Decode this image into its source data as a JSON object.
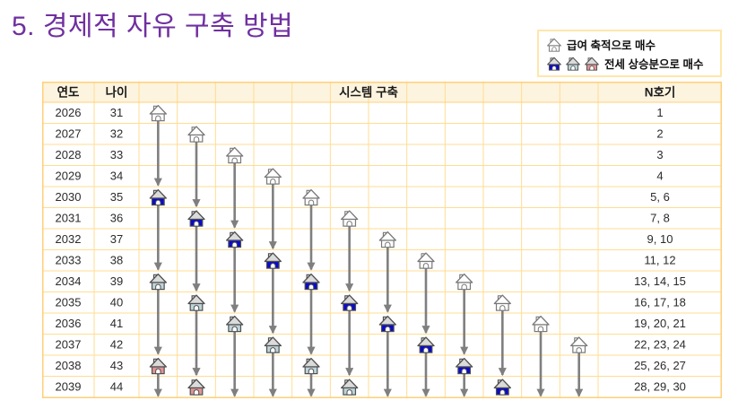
{
  "title": "5. 경제적 자유 구축 방법",
  "legend": {
    "salary": {
      "label": "급여 축적으로 매수",
      "icons": [
        "gray"
      ]
    },
    "jeonse": {
      "label": "전세 상승분으로 매수",
      "icons": [
        "blue",
        "teal",
        "red"
      ]
    }
  },
  "table": {
    "header": {
      "year": "연도",
      "age": "나이",
      "system": "시스템 구축",
      "unit": "N호기"
    },
    "system_column_count": 12,
    "rows": [
      {
        "year": "2026",
        "age": "31",
        "units": "1"
      },
      {
        "year": "2027",
        "age": "32",
        "units": "2"
      },
      {
        "year": "2028",
        "age": "33",
        "units": "3"
      },
      {
        "year": "2029",
        "age": "34",
        "units": "4"
      },
      {
        "year": "2030",
        "age": "35",
        "units": "5, 6"
      },
      {
        "year": "2031",
        "age": "36",
        "units": "7, 8"
      },
      {
        "year": "2032",
        "age": "37",
        "units": "9, 10"
      },
      {
        "year": "2033",
        "age": "38",
        "units": "11, 12"
      },
      {
        "year": "2034",
        "age": "39",
        "units": "13, 14, 15"
      },
      {
        "year": "2035",
        "age": "40",
        "units": "16, 17, 18"
      },
      {
        "year": "2036",
        "age": "41",
        "units": "19, 20, 21"
      },
      {
        "year": "2037",
        "age": "42",
        "units": "22, 23, 24"
      },
      {
        "year": "2038",
        "age": "43",
        "units": "25, 26, 27"
      },
      {
        "year": "2039",
        "age": "44",
        "units": "28, 29, 30"
      }
    ],
    "houses": [
      {
        "row": 0,
        "col": 1,
        "type": "gray"
      },
      {
        "row": 1,
        "col": 2,
        "type": "gray"
      },
      {
        "row": 2,
        "col": 3,
        "type": "gray"
      },
      {
        "row": 3,
        "col": 4,
        "type": "gray"
      },
      {
        "row": 4,
        "col": 5,
        "type": "gray"
      },
      {
        "row": 5,
        "col": 6,
        "type": "gray"
      },
      {
        "row": 6,
        "col": 7,
        "type": "gray"
      },
      {
        "row": 7,
        "col": 8,
        "type": "gray"
      },
      {
        "row": 8,
        "col": 9,
        "type": "gray"
      },
      {
        "row": 9,
        "col": 10,
        "type": "gray"
      },
      {
        "row": 10,
        "col": 11,
        "type": "gray"
      },
      {
        "row": 11,
        "col": 12,
        "type": "gray"
      },
      {
        "row": 4,
        "col": 1,
        "type": "blue"
      },
      {
        "row": 5,
        "col": 2,
        "type": "blue"
      },
      {
        "row": 6,
        "col": 3,
        "type": "blue"
      },
      {
        "row": 7,
        "col": 4,
        "type": "blue"
      },
      {
        "row": 8,
        "col": 5,
        "type": "blue"
      },
      {
        "row": 9,
        "col": 6,
        "type": "blue"
      },
      {
        "row": 10,
        "col": 7,
        "type": "blue"
      },
      {
        "row": 11,
        "col": 8,
        "type": "blue"
      },
      {
        "row": 12,
        "col": 9,
        "type": "blue"
      },
      {
        "row": 13,
        "col": 10,
        "type": "blue"
      },
      {
        "row": 8,
        "col": 1,
        "type": "teal"
      },
      {
        "row": 9,
        "col": 2,
        "type": "teal"
      },
      {
        "row": 10,
        "col": 3,
        "type": "teal"
      },
      {
        "row": 11,
        "col": 4,
        "type": "teal"
      },
      {
        "row": 12,
        "col": 5,
        "type": "teal"
      },
      {
        "row": 13,
        "col": 6,
        "type": "teal"
      },
      {
        "row": 12,
        "col": 1,
        "type": "red"
      },
      {
        "row": 13,
        "col": 2,
        "type": "red"
      }
    ],
    "arrows": [
      {
        "col": 1,
        "from_row": 0,
        "tip_row": 4,
        "tip": "house"
      },
      {
        "col": 2,
        "from_row": 1,
        "tip_row": 5,
        "tip": "house"
      },
      {
        "col": 3,
        "from_row": 2,
        "tip_row": 6,
        "tip": "house"
      },
      {
        "col": 4,
        "from_row": 3,
        "tip_row": 7,
        "tip": "house"
      },
      {
        "col": 5,
        "from_row": 4,
        "tip_row": 8,
        "tip": "house"
      },
      {
        "col": 6,
        "from_row": 5,
        "tip_row": 9,
        "tip": "house"
      },
      {
        "col": 7,
        "from_row": 6,
        "tip_row": 10,
        "tip": "house"
      },
      {
        "col": 8,
        "from_row": 7,
        "tip_row": 11,
        "tip": "house"
      },
      {
        "col": 9,
        "from_row": 8,
        "tip_row": 12,
        "tip": "house"
      },
      {
        "col": 10,
        "from_row": 9,
        "tip_row": 13,
        "tip": "house"
      },
      {
        "col": 11,
        "from_row": 10,
        "tip_row": null,
        "tip": "bottom"
      },
      {
        "col": 12,
        "from_row": 11,
        "tip_row": null,
        "tip": "bottom"
      },
      {
        "col": 1,
        "from_row": 4,
        "tip_row": 8,
        "tip": "house"
      },
      {
        "col": 2,
        "from_row": 5,
        "tip_row": 9,
        "tip": "house"
      },
      {
        "col": 3,
        "from_row": 6,
        "tip_row": 10,
        "tip": "house"
      },
      {
        "col": 4,
        "from_row": 7,
        "tip_row": 11,
        "tip": "house"
      },
      {
        "col": 5,
        "from_row": 8,
        "tip_row": 12,
        "tip": "house"
      },
      {
        "col": 6,
        "from_row": 9,
        "tip_row": 13,
        "tip": "house"
      },
      {
        "col": 7,
        "from_row": 10,
        "tip_row": null,
        "tip": "bottom"
      },
      {
        "col": 8,
        "from_row": 11,
        "tip_row": null,
        "tip": "bottom"
      },
      {
        "col": 9,
        "from_row": 12,
        "tip_row": null,
        "tip": "bottom"
      },
      {
        "col": 1,
        "from_row": 8,
        "tip_row": 12,
        "tip": "house"
      },
      {
        "col": 2,
        "from_row": 9,
        "tip_row": 13,
        "tip": "house"
      },
      {
        "col": 3,
        "from_row": 10,
        "tip_row": null,
        "tip": "bottom"
      },
      {
        "col": 4,
        "from_row": 11,
        "tip_row": null,
        "tip": "bottom"
      },
      {
        "col": 5,
        "from_row": 12,
        "tip_row": null,
        "tip": "bottom"
      },
      {
        "col": 1,
        "from_row": 12,
        "tip_row": null,
        "tip": "bottom"
      }
    ]
  },
  "colors": {
    "title": "#7030A0",
    "table_border": "#FFDD92",
    "table_border_outer": "#FFCF78",
    "header_bg": "#FDF4DF",
    "cell_bg": "#FFFFFF",
    "text": "#2B2B2B",
    "arrow": "#7F7F7F",
    "house_gray_stroke": "#787878",
    "house_stroke": "#4F4F4F",
    "roof_fill": "#DBDBDB",
    "house_blue": "#0A0ACD",
    "house_teal": "#BDD5DA",
    "house_red": "#E29494",
    "legend_border": "#FFE6AC"
  }
}
